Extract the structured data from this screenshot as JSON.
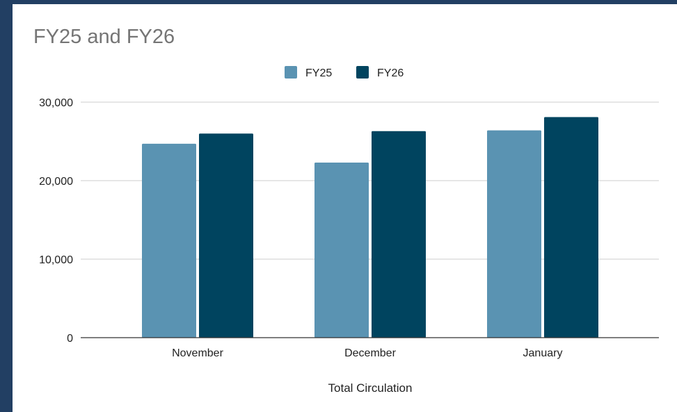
{
  "colors": {
    "frame_border": "#223f63",
    "background": "#ffffff",
    "gridline": "#cccccc",
    "baseline": "#333333",
    "title": "#757575",
    "text": "#222222"
  },
  "chart_data": {
    "type": "bar",
    "title": "FY25 and FY26",
    "xlabel": "Total Circulation",
    "ylabel": "",
    "categories": [
      "November",
      "December",
      "January"
    ],
    "series": [
      {
        "name": "FY25",
        "color": "#5a93b2",
        "values": [
          24700,
          22300,
          26400
        ]
      },
      {
        "name": "FY26",
        "color": "#00445f",
        "values": [
          26000,
          26300,
          28100
        ]
      }
    ],
    "ylim": [
      0,
      30000
    ],
    "yticks": [
      0,
      10000,
      20000,
      30000
    ],
    "ytick_labels": [
      "0",
      "10,000",
      "20,000",
      "30,000"
    ],
    "grid": true,
    "legend_position": "top-center"
  }
}
